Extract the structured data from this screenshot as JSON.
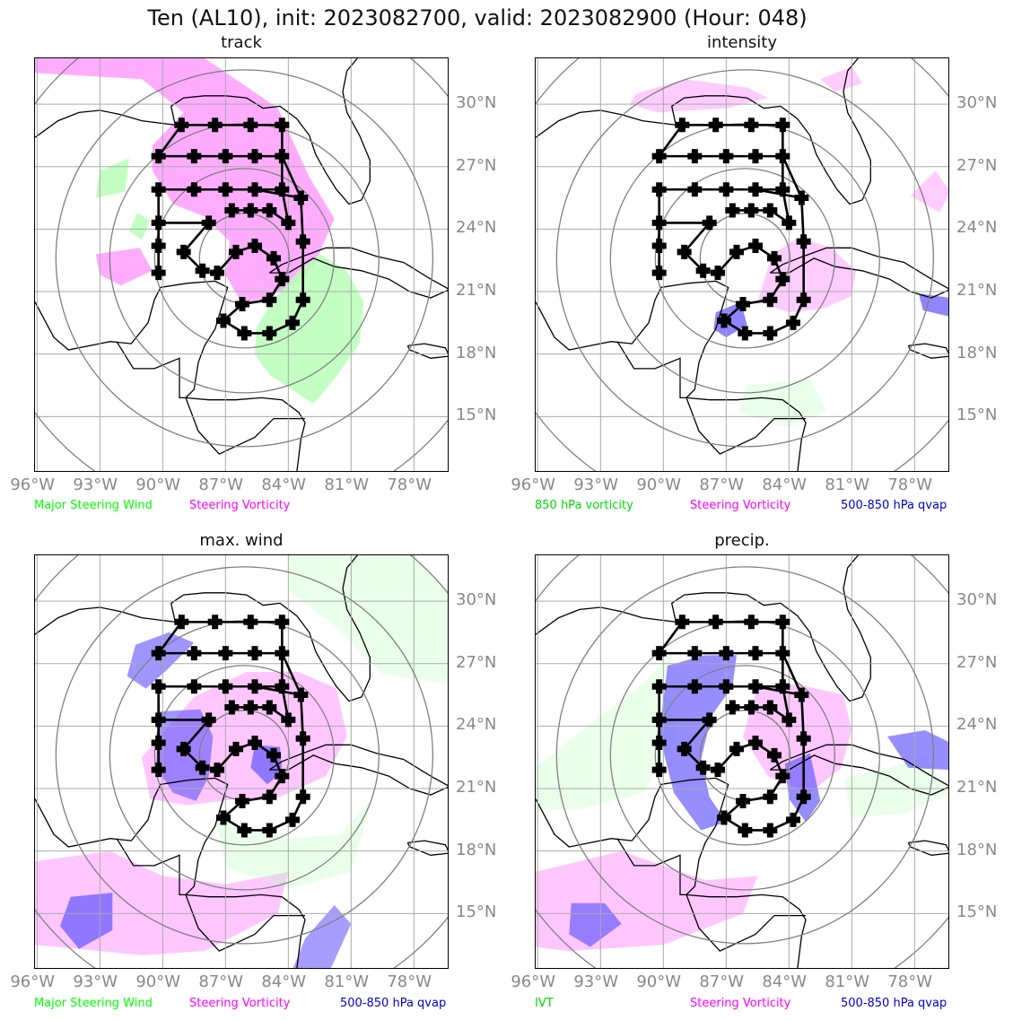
{
  "figure": {
    "title": "Ten (AL10), init: 2023082700, valid: 2023082900 (Hour: 048)",
    "lon_ticks": [
      "96°W",
      "93°W",
      "90°W",
      "87°W",
      "84°W",
      "81°W",
      "78°W"
    ],
    "lat_ticks": [
      "30°N",
      "27°N",
      "24°N",
      "21°N",
      "18°N",
      "15°N"
    ]
  },
  "colors": {
    "steering_wind": "#00ff00",
    "vorticity": "#ff00ff",
    "qvap": "#0000cc",
    "green_fill": "#b9ffb9",
    "magenta_fill": "#ff80ff",
    "blue_fill": "#6a5cff",
    "grid": "#aaaaaa",
    "range_rings": "#808080",
    "track": "#000000"
  },
  "panels": [
    {
      "title": "track",
      "legend": [
        "Major Steering Wind",
        "Steering Vorticity"
      ]
    },
    {
      "title": "intensity",
      "legend": [
        "850 hPa vorticity",
        "Steering Vorticity",
        "500-850 hPa qvap"
      ]
    },
    {
      "title": "max. wind",
      "legend": [
        "Major Steering Wind",
        "Steering Vorticity",
        "500-850 hPa qvap"
      ]
    },
    {
      "title": "precip.",
      "legend": [
        "IVT",
        "Steering Vorticity",
        "500-850 hPa qvap"
      ]
    }
  ],
  "track_points": [
    [
      -84.9,
      19.0
    ],
    [
      -86.1,
      19.0
    ],
    [
      -87.1,
      19.6
    ],
    [
      -86.2,
      20.4
    ],
    [
      -84.9,
      20.6
    ],
    [
      -84.3,
      21.6
    ],
    [
      -84.7,
      22.6
    ],
    [
      -85.6,
      23.2
    ],
    [
      -86.5,
      22.9
    ],
    [
      -87.4,
      21.9
    ],
    [
      -88.1,
      22.0
    ],
    [
      -89.0,
      22.9
    ],
    [
      -87.8,
      24.3
    ],
    [
      -90.2,
      24.3
    ],
    [
      -90.2,
      25.9
    ],
    [
      -88.5,
      25.9
    ],
    [
      -87.0,
      25.9
    ],
    [
      -85.6,
      25.9
    ],
    [
      -84.3,
      25.9
    ],
    [
      -84.3,
      27.5
    ],
    [
      -85.6,
      27.5
    ],
    [
      -87.0,
      27.5
    ],
    [
      -88.5,
      27.5
    ],
    [
      -90.2,
      27.5
    ],
    [
      -89.1,
      29.0
    ],
    [
      -87.5,
      29.0
    ],
    [
      -85.8,
      29.0
    ],
    [
      -84.3,
      29.0
    ],
    [
      -83.4,
      25.5
    ],
    [
      -84.0,
      24.3
    ],
    [
      -84.9,
      24.9
    ],
    [
      -85.8,
      24.9
    ],
    [
      -86.7,
      24.9
    ],
    [
      -83.3,
      23.4
    ],
    [
      -83.3,
      20.6
    ],
    [
      -83.8,
      19.5
    ],
    [
      -90.2,
      23.2
    ],
    [
      -90.2,
      21.9
    ]
  ],
  "track_segments": [
    [
      0,
      1
    ],
    [
      1,
      2
    ],
    [
      2,
      3
    ],
    [
      3,
      4
    ],
    [
      4,
      5
    ],
    [
      5,
      6
    ],
    [
      6,
      7
    ],
    [
      7,
      8
    ],
    [
      8,
      9
    ],
    [
      10,
      11
    ],
    [
      11,
      12
    ],
    [
      12,
      13
    ],
    [
      14,
      15
    ],
    [
      15,
      16
    ],
    [
      16,
      17
    ],
    [
      17,
      18
    ],
    [
      19,
      20
    ],
    [
      20,
      21
    ],
    [
      21,
      22
    ],
    [
      22,
      23
    ],
    [
      23,
      24
    ],
    [
      24,
      25
    ],
    [
      25,
      26
    ],
    [
      26,
      27
    ],
    [
      27,
      19
    ],
    [
      19,
      28
    ],
    [
      28,
      33
    ],
    [
      33,
      34
    ],
    [
      34,
      35
    ],
    [
      35,
      0
    ],
    [
      18,
      29
    ],
    [
      29,
      30
    ],
    [
      30,
      31
    ],
    [
      31,
      32
    ],
    [
      13,
      36
    ],
    [
      36,
      37
    ],
    [
      37,
      14
    ],
    [
      18,
      19
    ],
    [
      17,
      28
    ]
  ]
}
